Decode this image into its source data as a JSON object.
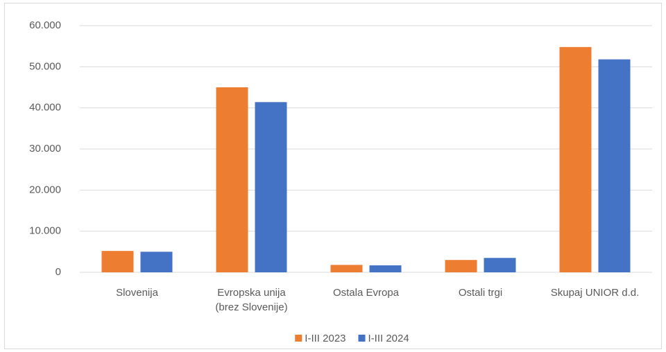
{
  "chart_data": {
    "type": "bar",
    "categories": [
      "Slovenija",
      "Evropska unija (brez Slovenije)",
      "Ostala Evropa",
      "Ostali trgi",
      "Skupaj UNIOR d.d."
    ],
    "series": [
      {
        "name": "I-III 2023",
        "color": "#ed7d31",
        "values": [
          5200,
          45000,
          1800,
          3000,
          54800
        ]
      },
      {
        "name": "I-III 2024",
        "color": "#4472c4",
        "values": [
          5000,
          41400,
          1700,
          3500,
          51800
        ]
      }
    ],
    "ylim": [
      0,
      60000
    ],
    "yticks": [
      0,
      {
        "value": 10000,
        "label": "10.000"
      },
      {
        "value": 20000,
        "label": "20.000"
      },
      {
        "value": 30000,
        "label": "30.000"
      },
      {
        "value": 40000,
        "label": "40.000"
      },
      {
        "value": 50000,
        "label": "50.000"
      },
      {
        "value": 60000,
        "label": "60.000"
      }
    ],
    "grid": true,
    "legend": "bottom"
  }
}
